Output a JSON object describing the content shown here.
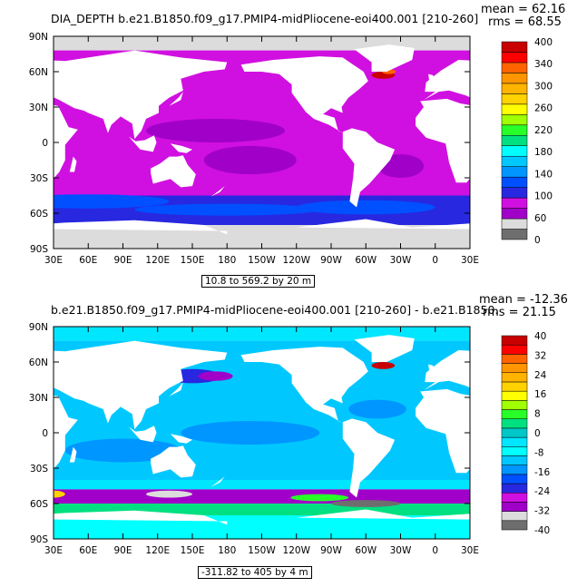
{
  "panels": [
    {
      "title": "DIA_DEPTH  b.e21.B1850.f09_g17.PMIP4-midPliocene-eoi400.001 [210-260]",
      "mean_text": "mean = 62.16",
      "rms_text": "rms = 68.55",
      "range_text": "10.8 to 569.2 by 20 m",
      "lat_labels": [
        "90N",
        "60N",
        "30N",
        "0",
        "30S",
        "60S",
        "90S"
      ],
      "lon_labels": [
        "30E",
        "60E",
        "90E",
        "120E",
        "150E",
        "180",
        "150W",
        "120W",
        "90W",
        "60W",
        "30W",
        "0",
        "30E"
      ],
      "colorbar": {
        "colors": [
          "#6e6e6e",
          "#dcdcdc",
          "#a000c8",
          "#d010e0",
          "#2828e0",
          "#0050ff",
          "#0096ff",
          "#00c8ff",
          "#00ffff",
          "#00e080",
          "#28ff28",
          "#a0ff00",
          "#ffff00",
          "#ffd200",
          "#ffb400",
          "#ff9600",
          "#ff6400",
          "#ff0000",
          "#c80000"
        ],
        "labels": [
          "0",
          "60",
          "100",
          "140",
          "180",
          "220",
          "260",
          "300",
          "340",
          "400"
        ]
      }
    },
    {
      "title": "b.e21.B1850.f09_g17.PMIP4-midPliocene-eoi400.001  [210-260] - b.e21.B1850.",
      "mean_text": "mean = -12.36",
      "rms_text": "rms = 21.15",
      "range_text": "-311.82 to 405 by 4 m",
      "lat_labels": [
        "90N",
        "60N",
        "30N",
        "0",
        "30S",
        "60S",
        "90S"
      ],
      "lon_labels": [
        "30E",
        "60E",
        "90E",
        "120E",
        "150E",
        "180",
        "150W",
        "120W",
        "90W",
        "60W",
        "30W",
        "0",
        "30E"
      ],
      "colorbar": {
        "colors": [
          "#6e6e6e",
          "#dcdcdc",
          "#a000c8",
          "#d010e0",
          "#2828e0",
          "#0050ff",
          "#0096ff",
          "#00c8ff",
          "#00ffff",
          "#00e6ff",
          "#00c8c8",
          "#00e080",
          "#28ff28",
          "#a0ff00",
          "#ffff00",
          "#ffd200",
          "#ffb400",
          "#ff9600",
          "#ff6400",
          "#ff0000",
          "#c80000"
        ],
        "labels": [
          "-40",
          "-32",
          "-24",
          "-16",
          "-8",
          "0",
          "8",
          "16",
          "24",
          "32",
          "40"
        ]
      }
    }
  ]
}
